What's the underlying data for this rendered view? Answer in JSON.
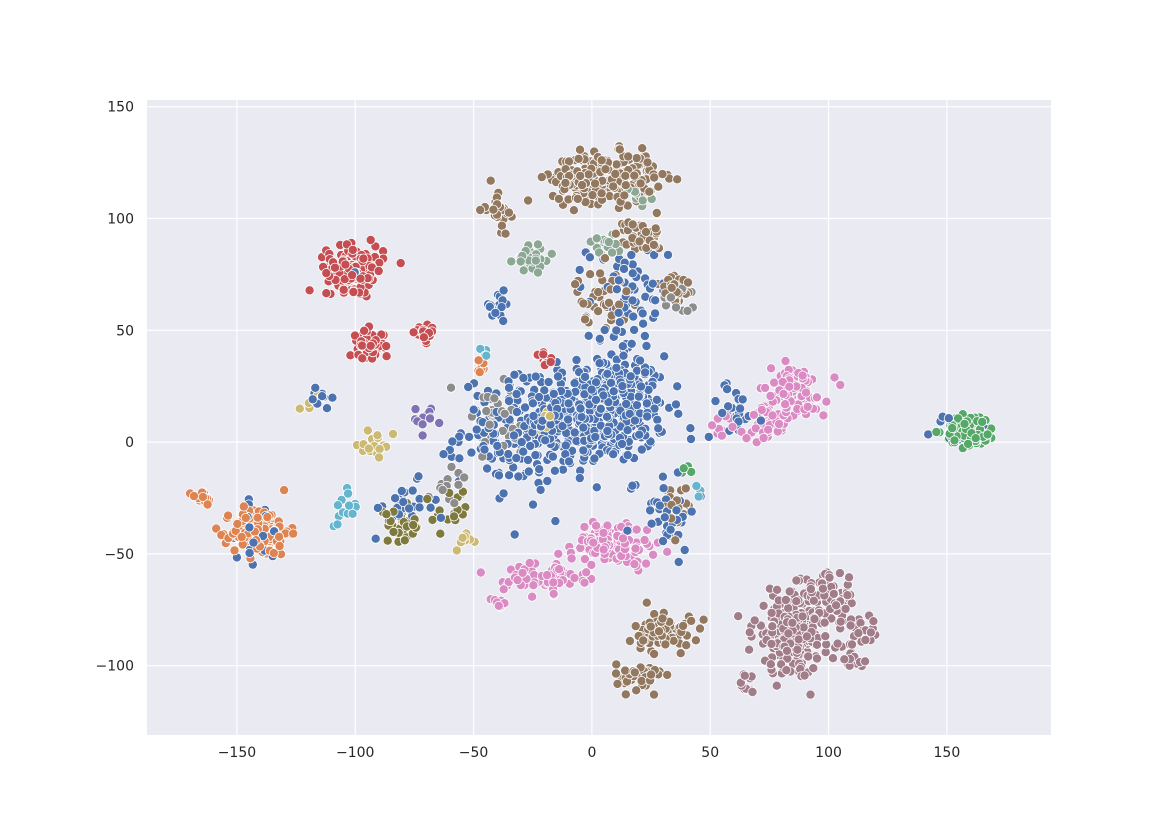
{
  "chart_data": {
    "type": "scatter",
    "title": "",
    "xlabel": "",
    "ylabel": "",
    "xlim": [
      -188,
      194
    ],
    "ylim": [
      -131,
      153
    ],
    "xticks": [
      -150,
      -100,
      -50,
      0,
      50,
      100,
      150
    ],
    "yticks": [
      -100,
      -50,
      0,
      50,
      100,
      150
    ],
    "xtick_labels": [
      "−150",
      "−100",
      "−50",
      "0",
      "50",
      "100",
      "150"
    ],
    "ytick_labels": [
      "−100",
      "−50",
      "0",
      "50",
      "100",
      "150"
    ],
    "grid": true,
    "legend": "none",
    "background_color": "#eaeaf2",
    "series": [
      {
        "color": "#4c72b0",
        "clusters": [
          {
            "center": [
              5,
              15
            ],
            "spread": [
              22,
              20
            ],
            "count": 420
          },
          {
            "center": [
              -25,
              5
            ],
            "spread": [
              25,
              20
            ],
            "count": 220
          },
          {
            "center": [
              15,
              60
            ],
            "spread": [
              14,
              25
            ],
            "count": 70
          },
          {
            "center": [
              -40,
              60
            ],
            "spread": [
              6,
              6
            ],
            "count": 15
          },
          {
            "center": [
              60,
              15
            ],
            "spread": [
              10,
              10
            ],
            "count": 25
          },
          {
            "center": [
              -140,
              -40
            ],
            "spread": [
              8,
              10
            ],
            "count": 25
          },
          {
            "center": [
              -80,
              -30
            ],
            "spread": [
              12,
              10
            ],
            "count": 25
          },
          {
            "center": [
              -115,
              20
            ],
            "spread": [
              4,
              5
            ],
            "count": 10
          },
          {
            "center": [
              155,
              5
            ],
            "spread": [
              10,
              6
            ],
            "count": 15
          },
          {
            "center": [
              -100,
              75
            ],
            "spread": [
              6,
              8
            ],
            "count": 12
          },
          {
            "center": [
              30,
              -30
            ],
            "spread": [
              12,
              15
            ],
            "count": 40
          }
        ]
      },
      {
        "color": "#dd8452",
        "clusters": [
          {
            "center": [
              -140,
              -40
            ],
            "spread": [
              10,
              9
            ],
            "count": 140
          },
          {
            "center": [
              -165,
              -25
            ],
            "spread": [
              4,
              3
            ],
            "count": 20
          },
          {
            "center": [
              -47,
              33
            ],
            "spread": [
              3,
              3
            ],
            "count": 6
          }
        ]
      },
      {
        "color": "#55a868",
        "clusters": [
          {
            "center": [
              160,
              5
            ],
            "spread": [
              9,
              6
            ],
            "count": 110
          },
          {
            "center": [
              40,
              -12
            ],
            "spread": [
              2,
              2
            ],
            "count": 4
          }
        ]
      },
      {
        "color": "#c44e52",
        "clusters": [
          {
            "center": [
              -100,
              78
            ],
            "spread": [
              10,
              8
            ],
            "count": 160
          },
          {
            "center": [
              -95,
              43
            ],
            "spread": [
              6,
              6
            ],
            "count": 50
          },
          {
            "center": [
              -70,
              48
            ],
            "spread": [
              4,
              3
            ],
            "count": 20
          },
          {
            "center": [
              -20,
              38
            ],
            "spread": [
              4,
              3
            ],
            "count": 12
          }
        ]
      },
      {
        "color": "#8172b3",
        "clusters": [
          {
            "center": [
              -70,
              10
            ],
            "spread": [
              6,
              5
            ],
            "count": 12
          }
        ]
      },
      {
        "color": "#937860",
        "clusters": [
          {
            "center": [
              5,
              118
            ],
            "spread": [
              18,
              9
            ],
            "count": 300
          },
          {
            "center": [
              -40,
              105
            ],
            "spread": [
              4,
              8
            ],
            "count": 30
          },
          {
            "center": [
              20,
              92
            ],
            "spread": [
              8,
              6
            ],
            "count": 40
          },
          {
            "center": [
              5,
              65
            ],
            "spread": [
              10,
              10
            ],
            "count": 40
          },
          {
            "center": [
              35,
              68
            ],
            "spread": [
              6,
              7
            ],
            "count": 40
          },
          {
            "center": [
              20,
              -105
            ],
            "spread": [
              8,
              5
            ],
            "count": 50
          },
          {
            "center": [
              30,
              -85
            ],
            "spread": [
              10,
              8
            ],
            "count": 70
          },
          {
            "center": [
              35,
              -30
            ],
            "spread": [
              5,
              8
            ],
            "count": 20
          }
        ]
      },
      {
        "color": "#da8bc3",
        "clusters": [
          {
            "center": [
              85,
              22
            ],
            "spread": [
              12,
              10
            ],
            "count": 120
          },
          {
            "center": [
              75,
              8
            ],
            "spread": [
              6,
              6
            ],
            "count": 30
          },
          {
            "center": [
              10,
              -45
            ],
            "spread": [
              14,
              8
            ],
            "count": 120
          },
          {
            "center": [
              -20,
              -60
            ],
            "spread": [
              14,
              6
            ],
            "count": 80
          },
          {
            "center": [
              55,
              5
            ],
            "spread": [
              6,
              6
            ],
            "count": 12
          },
          {
            "center": [
              -40,
              -73
            ],
            "spread": [
              3,
              3
            ],
            "count": 8
          }
        ]
      },
      {
        "color": "#8c8c8c",
        "clusters": [
          {
            "center": [
              -40,
              10
            ],
            "spread": [
              15,
              15
            ],
            "count": 40
          },
          {
            "center": [
              35,
              65
            ],
            "spread": [
              5,
              6
            ],
            "count": 20
          },
          {
            "center": [
              -60,
              -20
            ],
            "spread": [
              8,
              8
            ],
            "count": 15
          }
        ]
      },
      {
        "color": "#ccb974",
        "clusters": [
          {
            "center": [
              -90,
              -2
            ],
            "spread": [
              5,
              5
            ],
            "count": 18
          },
          {
            "center": [
              -118,
              18
            ],
            "spread": [
              3,
              3
            ],
            "count": 8
          },
          {
            "center": [
              -20,
              12
            ],
            "spread": [
              6,
              6
            ],
            "count": 8
          },
          {
            "center": [
              -55,
              -45
            ],
            "spread": [
              3,
              4
            ],
            "count": 8
          }
        ]
      },
      {
        "color": "#64b5cd",
        "clusters": [
          {
            "center": [
              -105,
              -30
            ],
            "spread": [
              5,
              8
            ],
            "count": 15
          },
          {
            "center": [
              -45,
              40
            ],
            "spread": [
              3,
              3
            ],
            "count": 5
          },
          {
            "center": [
              45,
              -20
            ],
            "spread": [
              3,
              3
            ],
            "count": 3
          }
        ]
      },
      {
        "color": "#8da795",
        "clusters": [
          {
            "center": [
              -25,
              82
            ],
            "spread": [
              6,
              5
            ],
            "count": 45
          },
          {
            "center": [
              5,
              88
            ],
            "spread": [
              6,
              4
            ],
            "count": 20
          },
          {
            "center": [
              20,
              110
            ],
            "spread": [
              4,
              3
            ],
            "count": 15
          }
        ]
      },
      {
        "color": "#a17c89",
        "clusters": [
          {
            "center": [
              85,
              -85
            ],
            "spread": [
              14,
              15
            ],
            "count": 260
          },
          {
            "center": [
              100,
              -70
            ],
            "spread": [
              10,
              10
            ],
            "count": 70
          },
          {
            "center": [
              115,
              -85
            ],
            "spread": [
              5,
              5
            ],
            "count": 20
          },
          {
            "center": [
              110,
              -98
            ],
            "spread": [
              6,
              3
            ],
            "count": 15
          },
          {
            "center": [
              65,
              -110
            ],
            "spread": [
              4,
              5
            ],
            "count": 10
          }
        ]
      },
      {
        "color": "#7e7a3e",
        "clusters": [
          {
            "center": [
              -80,
              -38
            ],
            "spread": [
              8,
              6
            ],
            "count": 30
          },
          {
            "center": [
              -60,
              -30
            ],
            "spread": [
              6,
              8
            ],
            "count": 15
          }
        ]
      }
    ]
  }
}
